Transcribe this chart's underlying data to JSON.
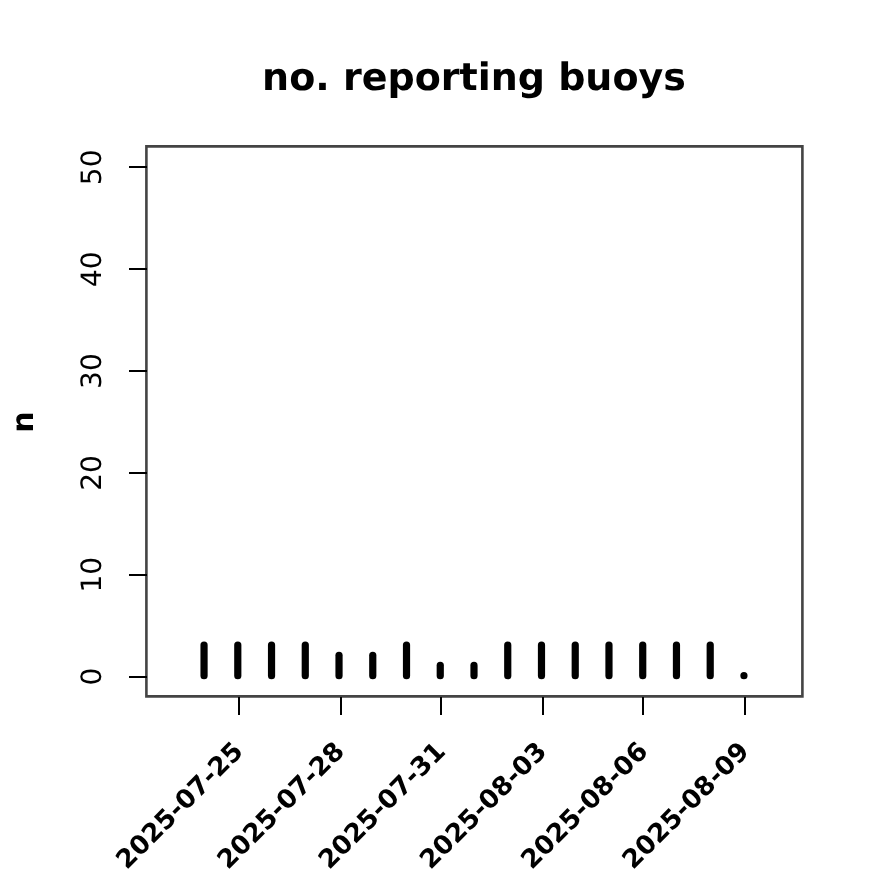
{
  "chart_data": {
    "type": "bar",
    "title": "no. reporting buoys",
    "ylabel": "n",
    "x": [
      "2025-07-24",
      "2025-07-25",
      "2025-07-26",
      "2025-07-27",
      "2025-07-28",
      "2025-07-29",
      "2025-07-30",
      "2025-07-31",
      "2025-08-01",
      "2025-08-02",
      "2025-08-03",
      "2025-08-04",
      "2025-08-05",
      "2025-08-06",
      "2025-08-07",
      "2025-08-08",
      "2025-08-09"
    ],
    "values": [
      3,
      3,
      3,
      3,
      2,
      2,
      3,
      1,
      1,
      3,
      3,
      3,
      3,
      3,
      3,
      3,
      0
    ],
    "color": "#000000",
    "xlim": [
      "2025-07-22T06:43",
      "2025-08-10T17:17"
    ],
    "xticks": [
      "2025-07-25",
      "2025-07-28",
      "2025-07-31",
      "2025-08-03",
      "2025-08-06",
      "2025-08-09"
    ],
    "ylim": [
      -2,
      52
    ],
    "yticks": [
      0,
      10,
      20,
      30,
      40,
      50
    ]
  }
}
